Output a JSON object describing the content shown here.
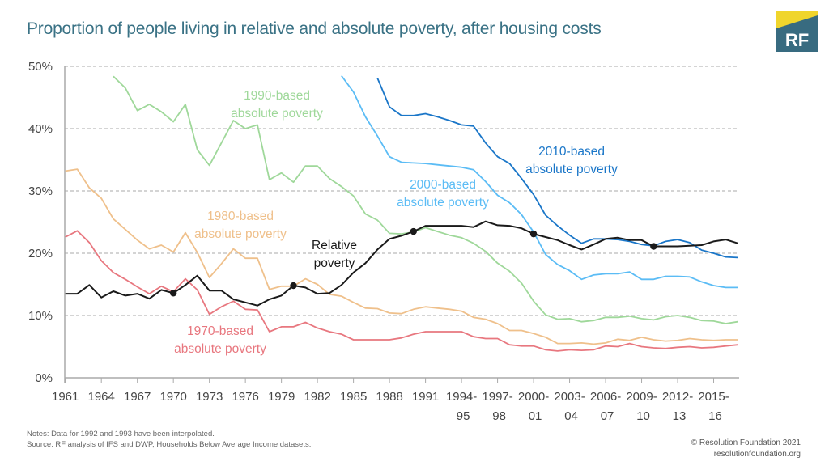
{
  "title": "Proportion of people living in relative and absolute poverty, after housing costs",
  "logo": {
    "text": "RF",
    "colors": {
      "yellow": "#f0d52c",
      "blue": "#386b80"
    }
  },
  "notes": [
    "Notes: Data for 1992 and 1993 have been interpolated.",
    "Source: RF analysis of IFS and DWP, Households Below Average Income datasets."
  ],
  "credit": [
    "© Resolution Foundation 2021",
    "resolutionfoundation.org"
  ],
  "chart_data": {
    "type": "line",
    "title": "Proportion of people living in relative and absolute poverty, after housing costs",
    "ylim": [
      0,
      50
    ],
    "yticks": [
      "0%",
      "10%",
      "20%",
      "30%",
      "40%",
      "50%"
    ],
    "grid": "horizontal dashed",
    "categories": [
      "1961",
      "1962",
      "1963",
      "1964",
      "1965",
      "1966",
      "1967",
      "1968",
      "1969",
      "1970",
      "1971",
      "1972",
      "1973",
      "1974",
      "1975",
      "1976",
      "1977",
      "1978",
      "1979",
      "1980",
      "1981",
      "1982",
      "1983",
      "1984",
      "1985",
      "1986",
      "1987",
      "1988",
      "1989",
      "1990",
      "1991",
      "1992",
      "1993",
      "1994-95",
      "1995-96",
      "1996-97",
      "1997-98",
      "1998-99",
      "1999-00",
      "2000-01",
      "2001-02",
      "2002-03",
      "2003-04",
      "2004-05",
      "2005-06",
      "2006-07",
      "2007-08",
      "2008-09",
      "2009-10",
      "2010-11",
      "2011-12",
      "2012-13",
      "2013-14",
      "2014-15",
      "2015-16",
      "2016-17",
      "2017-18"
    ],
    "xtick_labels": [
      {
        "cat": "1961",
        "l1": "1961",
        "l2": ""
      },
      {
        "cat": "1964",
        "l1": "1964",
        "l2": ""
      },
      {
        "cat": "1967",
        "l1": "1967",
        "l2": ""
      },
      {
        "cat": "1970",
        "l1": "1970",
        "l2": ""
      },
      {
        "cat": "1973",
        "l1": "1973",
        "l2": ""
      },
      {
        "cat": "1976",
        "l1": "1976",
        "l2": ""
      },
      {
        "cat": "1979",
        "l1": "1979",
        "l2": ""
      },
      {
        "cat": "1982",
        "l1": "1982",
        "l2": ""
      },
      {
        "cat": "1985",
        "l1": "1985",
        "l2": ""
      },
      {
        "cat": "1988",
        "l1": "1988",
        "l2": ""
      },
      {
        "cat": "1991",
        "l1": "1991",
        "l2": ""
      },
      {
        "cat": "1994-95",
        "l1": "1994-",
        "l2": "95"
      },
      {
        "cat": "1997-98",
        "l1": "1997-",
        "l2": "98"
      },
      {
        "cat": "2000-01",
        "l1": "2000-",
        "l2": "01"
      },
      {
        "cat": "2003-04",
        "l1": "2003-",
        "l2": "04"
      },
      {
        "cat": "2006-07",
        "l1": "2006-",
        "l2": "07"
      },
      {
        "cat": "2009-10",
        "l1": "2009-",
        "l2": "10"
      },
      {
        "cat": "2012-13",
        "l1": "2012-",
        "l2": "13"
      },
      {
        "cat": "2015-16",
        "l1": "2015-",
        "l2": "16"
      }
    ],
    "series": [
      {
        "name": "1970-based absolute poverty",
        "label": [
          "1970-based",
          "absolute poverty"
        ],
        "color": "#e8777f",
        "values": [
          22.6,
          23.6,
          21.7,
          18.8,
          16.9,
          15.8,
          14.6,
          13.5,
          14.7,
          13.8,
          15.9,
          14.1,
          10.2,
          11.4,
          12.3,
          11.0,
          10.9,
          7.4,
          8.2,
          8.2,
          8.9,
          8.0,
          7.4,
          7.0,
          6.1,
          6.1,
          6.1,
          6.1,
          6.4,
          7.0,
          7.4,
          7.4,
          7.4,
          7.4,
          6.6,
          6.3,
          6.3,
          5.3,
          5.1,
          5.1,
          4.5,
          4.3,
          4.5,
          4.4,
          4.5,
          5.1,
          5.0,
          5.5,
          5.0,
          4.8,
          4.7,
          4.9,
          5.0,
          4.8,
          4.9,
          5.1,
          5.3
        ]
      },
      {
        "name": "1980-based absolute poverty",
        "label": [
          "1980-based",
          "absolute poverty"
        ],
        "color": "#efc08b",
        "values": [
          33.2,
          33.5,
          30.5,
          28.8,
          25.5,
          23.8,
          22.1,
          20.7,
          21.3,
          20.2,
          23.3,
          20.1,
          16.1,
          18.3,
          20.7,
          19.2,
          19.2,
          14.2,
          14.7,
          14.7,
          15.9,
          15.0,
          13.4,
          13.1,
          12.1,
          11.2,
          11.1,
          10.4,
          10.3,
          11.0,
          11.4,
          11.2,
          11.0,
          10.7,
          9.7,
          9.4,
          8.7,
          7.6,
          7.6,
          7.1,
          6.5,
          5.5,
          5.5,
          5.6,
          5.4,
          5.6,
          6.2,
          6.0,
          6.5,
          6.1,
          5.9,
          6.0,
          6.3,
          6.1,
          6.0,
          6.1,
          6.1
        ]
      },
      {
        "name": "1990-based absolute poverty",
        "label": [
          "1990-based",
          "absolute poverty"
        ],
        "color": "#9fd89a",
        "values": [
          null,
          null,
          null,
          null,
          48.4,
          46.5,
          42.9,
          43.9,
          42.7,
          41.1,
          43.9,
          36.6,
          34.1,
          37.7,
          41.3,
          40.0,
          40.6,
          31.8,
          32.9,
          31.4,
          34.0,
          34.0,
          32.0,
          30.7,
          29.2,
          26.3,
          25.3,
          23.2,
          23.1,
          23.4,
          24.1,
          23.5,
          22.9,
          22.5,
          21.6,
          20.3,
          18.4,
          17.1,
          15.2,
          12.3,
          10.1,
          9.4,
          9.5,
          9.0,
          9.2,
          9.7,
          9.7,
          9.9,
          9.5,
          9.3,
          9.8,
          10.0,
          9.7,
          9.2,
          9.1,
          8.7,
          9.0
        ]
      },
      {
        "name": "2000-based absolute poverty",
        "label": [
          "2000-based",
          "absolute poverty"
        ],
        "color": "#5bbcf5",
        "values": [
          null,
          null,
          null,
          null,
          null,
          null,
          null,
          null,
          null,
          null,
          null,
          null,
          null,
          null,
          null,
          null,
          null,
          null,
          null,
          null,
          null,
          null,
          null,
          48.5,
          45.9,
          41.9,
          38.8,
          35.5,
          34.6,
          34.5,
          34.4,
          34.2,
          34.0,
          33.8,
          33.4,
          31.5,
          29.3,
          28.1,
          26.2,
          23.4,
          19.8,
          18.2,
          17.2,
          15.8,
          16.5,
          16.7,
          16.7,
          17.0,
          15.8,
          15.8,
          16.3,
          16.3,
          16.2,
          15.4,
          14.8,
          14.5,
          14.5
        ]
      },
      {
        "name": "2010-based absolute poverty",
        "label": [
          "2010-based",
          "absolute poverty"
        ],
        "color": "#1a76c8",
        "values": [
          null,
          null,
          null,
          null,
          null,
          null,
          null,
          null,
          null,
          null,
          null,
          null,
          null,
          null,
          null,
          null,
          null,
          null,
          null,
          null,
          null,
          null,
          null,
          null,
          null,
          null,
          48.1,
          43.5,
          42.1,
          42.1,
          42.4,
          41.9,
          41.3,
          40.6,
          40.4,
          37.7,
          35.5,
          34.4,
          32.0,
          29.4,
          26.1,
          24.4,
          22.9,
          21.6,
          22.3,
          22.3,
          22.2,
          21.9,
          21.4,
          21.2,
          21.9,
          22.2,
          21.7,
          20.5,
          20.0,
          19.4,
          19.3
        ]
      },
      {
        "name": "Relative poverty",
        "label": [
          "Relative",
          "poverty"
        ],
        "color": "#1a1a1a",
        "markers": [
          "1970",
          "1980",
          "1990",
          "2000-01",
          "2010-11"
        ],
        "values": [
          13.5,
          13.5,
          14.9,
          12.9,
          13.9,
          13.2,
          13.5,
          12.7,
          14.1,
          13.6,
          14.9,
          16.4,
          14.0,
          14.0,
          12.6,
          12.1,
          11.6,
          12.6,
          13.2,
          14.8,
          14.5,
          13.5,
          13.6,
          14.9,
          16.9,
          18.4,
          20.6,
          22.3,
          22.8,
          23.5,
          24.4,
          24.4,
          24.4,
          24.4,
          24.2,
          25.1,
          24.5,
          24.4,
          24.0,
          23.1,
          22.6,
          22.1,
          21.3,
          20.6,
          21.4,
          22.3,
          22.5,
          22.1,
          22.1,
          21.1,
          21.1,
          21.1,
          21.2,
          21.3,
          21.9,
          22.2,
          21.6
        ]
      }
    ]
  }
}
